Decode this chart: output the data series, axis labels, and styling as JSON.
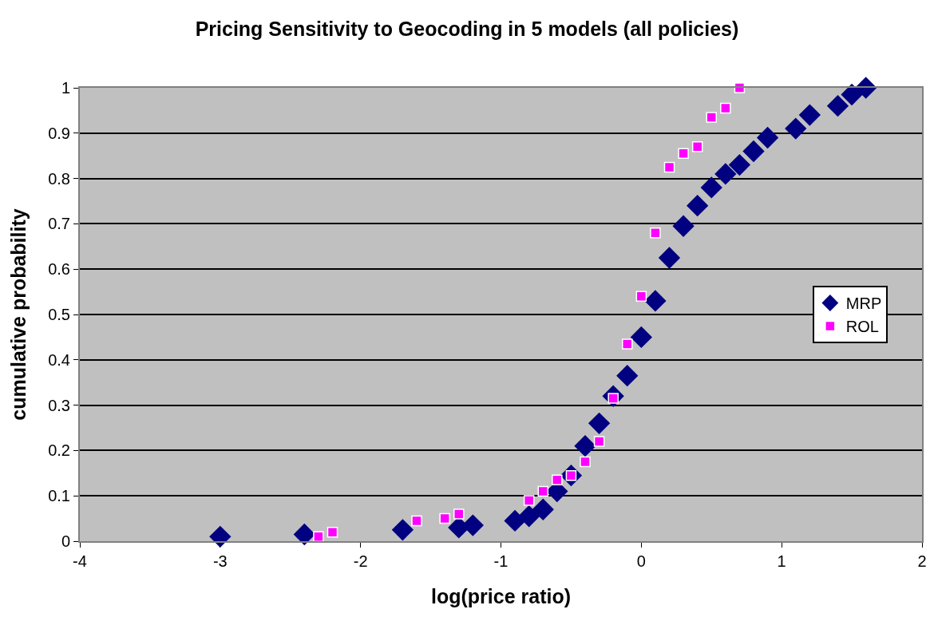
{
  "chart_data": {
    "type": "scatter",
    "title": "Pricing Sensitivity to Geocoding in 5 models (all policies)",
    "xlabel": "log(price ratio)",
    "ylabel": "cumulative probability",
    "series": [
      {
        "name": "MRP",
        "color": "#000080",
        "marker": "diamond",
        "x": [
          -3,
          -2.4,
          -1.7,
          -1.3,
          -1.2,
          -0.9,
          -0.8,
          -0.7,
          -0.6,
          -0.5,
          -0.4,
          -0.3,
          -0.2,
          -0.1,
          0,
          0.1,
          0.2,
          0.3,
          0.4,
          0.5,
          0.6,
          0.7,
          0.8,
          0.9,
          1.1,
          1.2,
          1.4,
          1.5,
          1.6
        ],
        "values": [
          0.01,
          0.015,
          0.025,
          0.03,
          0.035,
          0.045,
          0.055,
          0.07,
          0.11,
          0.145,
          0.21,
          0.26,
          0.32,
          0.365,
          0.45,
          0.53,
          0.625,
          0.695,
          0.74,
          0.78,
          0.81,
          0.83,
          0.86,
          0.89,
          0.91,
          0.94,
          0.96,
          0.985,
          1.0
        ]
      },
      {
        "name": "ROL",
        "color": "#ff00ff",
        "marker": "square",
        "x": [
          -2.3,
          -2.2,
          -1.6,
          -1.4,
          -1.3,
          -0.8,
          -0.7,
          -0.6,
          -0.5,
          -0.4,
          -0.3,
          -0.2,
          -0.1,
          0,
          0.1,
          0.2,
          0.3,
          0.4,
          0.5,
          0.6,
          0.7
        ],
        "values": [
          0.01,
          0.02,
          0.045,
          0.05,
          0.06,
          0.09,
          0.11,
          0.135,
          0.145,
          0.175,
          0.22,
          0.315,
          0.435,
          0.54,
          0.68,
          0.825,
          0.855,
          0.87,
          0.935,
          0.955,
          1.0
        ]
      }
    ],
    "xlim": [
      -4,
      2
    ],
    "xticks": [
      -4,
      -3,
      -2,
      -1,
      0,
      1,
      2
    ],
    "ylim": [
      0,
      1
    ],
    "yticks": [
      0,
      0.1,
      0.2,
      0.3,
      0.4,
      0.5,
      0.6,
      0.7,
      0.8,
      0.9,
      1
    ],
    "grid": "y",
    "legend": "right"
  }
}
